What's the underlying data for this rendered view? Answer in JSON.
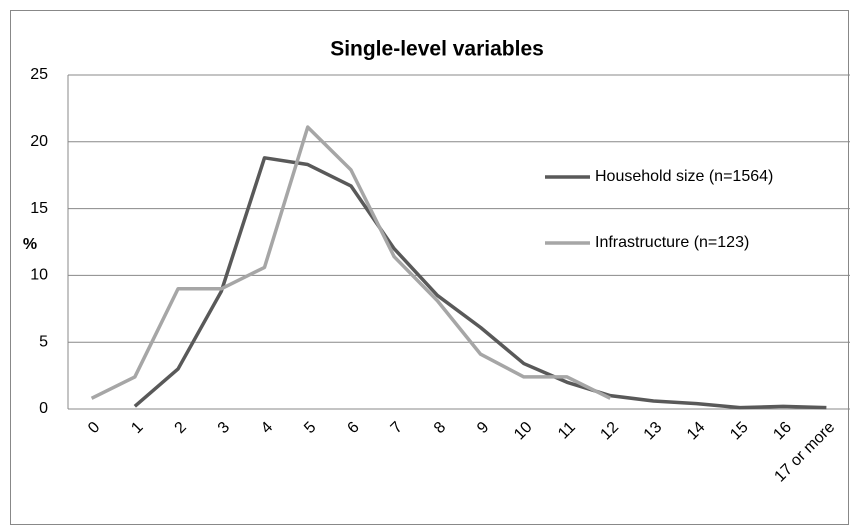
{
  "chart_data": {
    "type": "line",
    "title": "Single-level variables",
    "y_label": "%",
    "categories": [
      "0",
      "1",
      "2",
      "3",
      "4",
      "5",
      "6",
      "7",
      "8",
      "9",
      "10",
      "11",
      "12",
      "13",
      "14",
      "15",
      "16",
      "17 or more"
    ],
    "series": [
      {
        "name": "Household size (n=1564)",
        "color": "#595959",
        "values": [
          null,
          0.2,
          3.0,
          8.8,
          18.8,
          18.3,
          16.7,
          12.0,
          8.5,
          6.1,
          3.4,
          2.0,
          1.0,
          0.6,
          0.4,
          0.1,
          0.2,
          0.1
        ]
      },
      {
        "name": "Infrastructure (n=123)",
        "color": "#a6a6a6",
        "values": [
          0.8,
          2.4,
          9.0,
          9.0,
          10.6,
          21.1,
          17.9,
          11.4,
          8.1,
          4.1,
          2.4,
          2.4,
          0.8,
          null,
          null,
          null,
          null,
          null
        ]
      }
    ],
    "ylim": [
      0,
      25
    ],
    "yticks": [
      0,
      5,
      10,
      15,
      20,
      25
    ],
    "grid": true,
    "legend": "right"
  }
}
